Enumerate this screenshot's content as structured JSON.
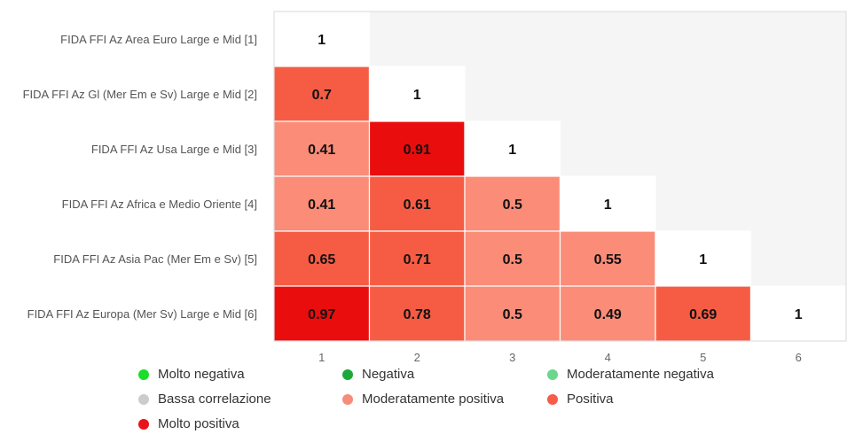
{
  "chart_data": {
    "type": "heatmap",
    "rows": [
      "FIDA FFI Az Area Euro Large e Mid [1]",
      "FIDA FFI Az Gl (Mer Em e Sv) Large e Mid [2]",
      "FIDA FFI Az Usa Large e Mid [3]",
      "FIDA FFI Az Africa e Medio Oriente [4]",
      "FIDA FFI Az Asia Pac (Mer Em e Sv) [5]",
      "FIDA FFI Az Europa (Mer Sv) Large e Mid [6]"
    ],
    "columns": [
      "1",
      "2",
      "3",
      "4",
      "5",
      "6"
    ],
    "matrix": [
      [
        1,
        null,
        null,
        null,
        null,
        null
      ],
      [
        0.7,
        1,
        null,
        null,
        null,
        null
      ],
      [
        0.41,
        0.91,
        1,
        null,
        null,
        null
      ],
      [
        0.41,
        0.61,
        0.5,
        1,
        null,
        null
      ],
      [
        0.65,
        0.71,
        0.5,
        0.55,
        1,
        null
      ],
      [
        0.97,
        0.78,
        0.5,
        0.49,
        0.69,
        1
      ]
    ],
    "cell_labels": [
      [
        "1",
        "",
        "",
        "",
        "",
        ""
      ],
      [
        "0.7",
        "1",
        "",
        "",
        "",
        ""
      ],
      [
        "0.41",
        "0.91",
        "1",
        "",
        "",
        ""
      ],
      [
        "0.41",
        "0.61",
        "0.5",
        "1",
        "",
        ""
      ],
      [
        "0.65",
        "0.71",
        "0.5",
        "0.55",
        "1",
        ""
      ],
      [
        "0.97",
        "0.78",
        "0.5",
        "0.49",
        "0.69",
        "1"
      ]
    ],
    "legend": [
      {
        "label": "Molto negativa",
        "color": "#1cdd2a"
      },
      {
        "label": "Negativa",
        "color": "#1fa83a"
      },
      {
        "label": "Moderatamente negativa",
        "color": "#6bd68c"
      },
      {
        "label": "Bassa correlazione",
        "color": "#cccccc"
      },
      {
        "label": "Moderatamente positiva",
        "color": "#f88c78"
      },
      {
        "label": "Positiva",
        "color": "#f45e48"
      },
      {
        "label": "Molto positiva",
        "color": "#e8131b"
      }
    ],
    "legend_position": "bottom"
  }
}
